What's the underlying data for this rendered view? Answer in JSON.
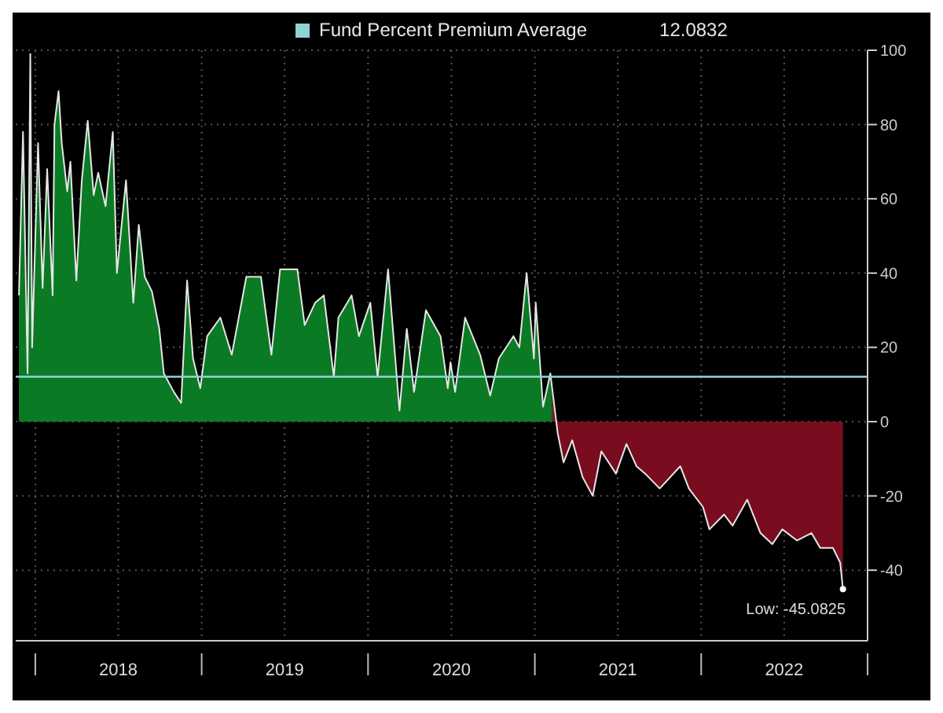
{
  "chart_data": {
    "type": "area",
    "x": [
      "2017-11-26",
      "2017-12-05",
      "2017-12-15",
      "2017-12-21",
      "2017-12-25",
      "2018-01-07",
      "2018-01-17",
      "2018-01-27",
      "2018-02-08",
      "2018-02-12",
      "2018-02-21",
      "2018-02-28",
      "2018-03-12",
      "2018-03-19",
      "2018-04-01",
      "2018-04-13",
      "2018-04-26",
      "2018-05-09",
      "2018-05-19",
      "2018-06-04",
      "2018-06-20",
      "2018-06-29",
      "2018-07-19",
      "2018-08-04",
      "2018-08-16",
      "2018-08-29",
      "2018-09-14",
      "2018-09-30",
      "2018-10-10",
      "2018-11-01",
      "2018-11-17",
      "2018-11-30",
      "2018-12-13",
      "2018-12-29",
      "2019-01-13",
      "2019-02-11",
      "2019-03-08",
      "2019-04-09",
      "2019-05-11",
      "2019-06-03",
      "2019-06-22",
      "2019-07-14",
      "2019-07-30",
      "2019-08-15",
      "2019-09-07",
      "2019-09-26",
      "2019-10-18",
      "2019-10-28",
      "2019-11-26",
      "2019-12-12",
      "2020-01-06",
      "2020-01-22",
      "2020-02-14",
      "2020-03-10",
      "2020-03-26",
      "2020-04-11",
      "2020-05-07",
      "2020-06-08",
      "2020-06-24",
      "2020-06-30",
      "2020-07-10",
      "2020-08-01",
      "2020-09-03",
      "2020-09-25",
      "2020-10-14",
      "2020-11-15",
      "2020-11-28",
      "2020-12-14",
      "2020-12-30",
      "2021-01-03",
      "2021-01-19",
      "2021-02-04",
      "2021-02-20",
      "2021-03-05",
      "2021-03-24",
      "2021-04-16",
      "2021-05-08",
      "2021-05-27",
      "2021-06-28",
      "2021-07-21",
      "2021-08-12",
      "2021-08-31",
      "2021-10-02",
      "2021-11-16",
      "2021-12-05",
      "2022-01-05",
      "2022-01-19",
      "2022-02-20",
      "2022-03-11",
      "2022-04-12",
      "2022-05-11",
      "2022-06-06",
      "2022-06-28",
      "2022-07-30",
      "2022-08-31",
      "2022-09-19",
      "2022-10-17",
      "2022-11-02",
      "2022-11-08"
    ],
    "series": [
      {
        "color": "#e6e6e6",
        "colors": [
          "#0b7a24",
          "#0b7a24",
          "#0b7a24",
          "#0b7a24",
          "#0b7a24",
          "#0b7a24",
          "#0b7a24",
          "#0b7a24",
          "#0b7a24",
          "#0b7a24",
          "#0b7a24",
          "#0b7a24",
          "#0b7a24",
          "#0b7a24",
          "#0b7a24",
          "#0b7a24",
          "#0b7a24",
          "#0b7a24",
          "#0b7a24",
          "#0b7a24",
          "#0b7a24",
          "#0b7a24",
          "#0b7a24",
          "#0b7a24",
          "#0b7a24",
          "#0b7a24",
          "#0b7a24",
          "#0b7a24",
          "#0b7a24",
          "#0b7a24",
          "#0b7a24",
          "#0b7a24",
          "#0b7a24",
          "#0b7a24",
          "#0b7a24",
          "#0b7a24",
          "#0b7a24",
          "#0b7a24",
          "#0b7a24",
          "#0b7a24",
          "#0b7a24",
          "#0b7a24",
          "#0b7a24",
          "#0b7a24",
          "#0b7a24",
          "#0b7a24",
          "#0b7a24",
          "#0b7a24",
          "#0b7a24",
          "#0b7a24",
          "#0b7a24",
          "#0b7a24",
          "#0b7a24",
          "#0b7a24",
          "#0b7a24",
          "#0b7a24",
          "#0b7a24",
          "#0b7a24",
          "#0b7a24",
          "#0b7a24",
          "#0b7a24",
          "#0b7a24",
          "#0b7a24",
          "#0b7a24",
          "#0b7a24",
          "#0b7a24",
          "#0b7a24",
          "#0b7a24",
          "#0b7a24",
          "#0b7a24",
          "#0b7a24",
          "#0b7a24",
          "#7a0c1f",
          "#7a0c1f",
          "#7a0c1f",
          "#7a0c1f",
          "#7a0c1f",
          "#7a0c1f",
          "#7a0c1f",
          "#7a0c1f",
          "#7a0c1f",
          "#7a0c1f",
          "#7a0c1f",
          "#7a0c1f",
          "#7a0c1f",
          "#7a0c1f",
          "#7a0c1f",
          "#7a0c1f",
          "#7a0c1f",
          "#7a0c1f",
          "#7a0c1f",
          "#7a0c1f",
          "#7a0c1f",
          "#7a0c1f",
          "#7a0c1f",
          "#7a0c1f",
          "#7a0c1f",
          "#7a0c1f",
          "#7a0c1f"
        ],
        "values": [
          34,
          78,
          13,
          99,
          20,
          75,
          36,
          68,
          34,
          80,
          89,
          75,
          62,
          70,
          38,
          65,
          81,
          61,
          67,
          58,
          78,
          40,
          65,
          32,
          53,
          39,
          35,
          25,
          13,
          8,
          5,
          38,
          17,
          9,
          23,
          28,
          18,
          39,
          39,
          18,
          41,
          41,
          41,
          26,
          32,
          34,
          12,
          28,
          34,
          23,
          32,
          12,
          41,
          3,
          25,
          8,
          30,
          23,
          9,
          16,
          8,
          28,
          18,
          7,
          17,
          23,
          20,
          40,
          17,
          32,
          4,
          13,
          -3,
          -11,
          -5,
          -15,
          -20,
          -8,
          -14,
          -6,
          -12,
          -14,
          -18,
          -12,
          -18,
          -23,
          -29,
          -25,
          -28,
          -21,
          -30,
          -33,
          -29,
          -32,
          -30,
          -34,
          -34,
          -38,
          -45.0825
        ]
      }
    ],
    "xlim": [
      "2017-11-19",
      "2023-01-01"
    ],
    "xticks": [
      {
        "value": "2018-01-01",
        "label": null
      },
      {
        "value": "2018-07-02",
        "label": "2018"
      },
      {
        "value": "2019-01-01",
        "label": null
      },
      {
        "value": "2019-07-02",
        "label": "2019"
      },
      {
        "value": "2020-01-01",
        "label": null
      },
      {
        "value": "2020-07-02",
        "label": "2020"
      },
      {
        "value": "2021-01-01",
        "label": null
      },
      {
        "value": "2021-07-02",
        "label": "2021"
      },
      {
        "value": "2022-01-01",
        "label": null
      },
      {
        "value": "2022-07-02",
        "label": "2022"
      },
      {
        "value": "2023-01-01",
        "label": null
      }
    ],
    "ylim": [
      -59,
      100
    ],
    "yticks": [
      -40,
      -20,
      0,
      20,
      40,
      60,
      80,
      100
    ],
    "grid": true,
    "ref_lines": [
      {
        "axis": "y",
        "value": 12.0832,
        "label": "Fund Percent Premium Average",
        "color": "#8fd3d3"
      }
    ],
    "annotations": [
      "12.0832",
      {
        "text": "Low: -45.0825",
        "x": "2022-11-08",
        "y": -45.0825
      }
    ]
  }
}
